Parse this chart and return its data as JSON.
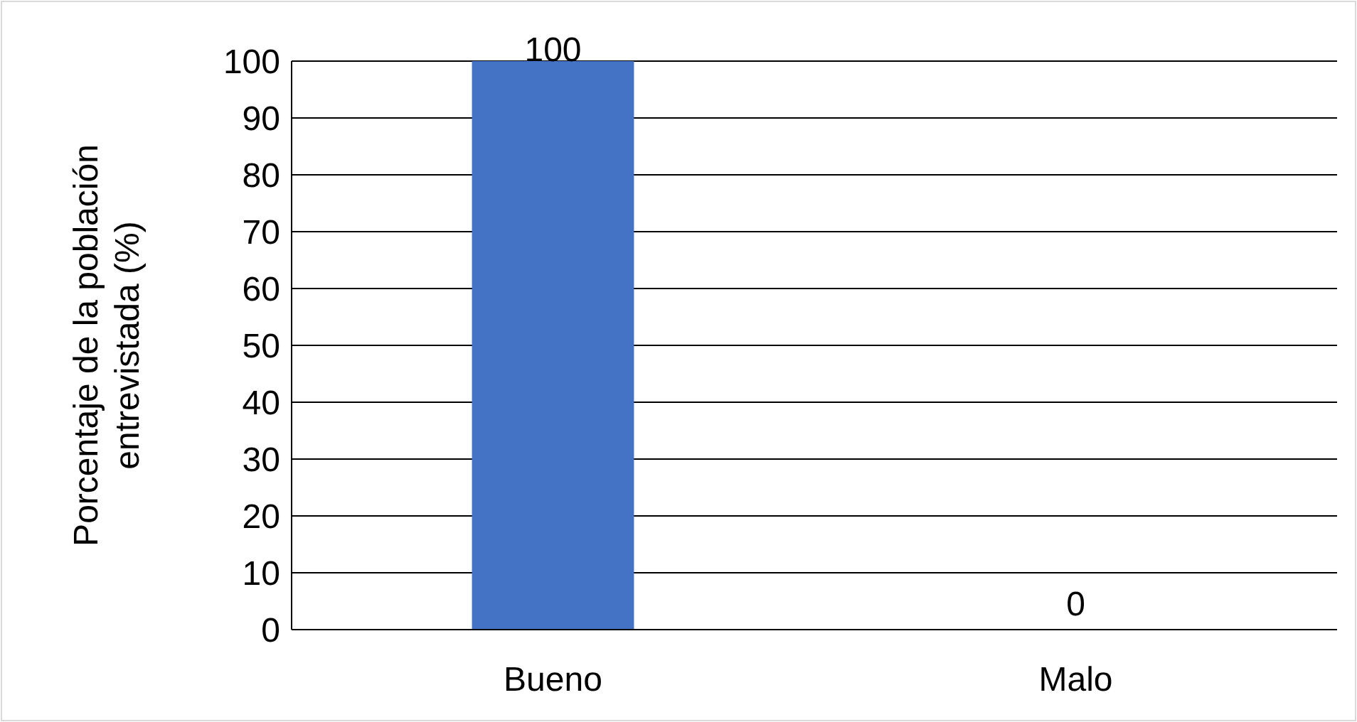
{
  "chart_data": {
    "type": "bar",
    "ylabel": "Porcentaje de la población entrevistada (%)",
    "categories": [
      "Bueno",
      "Malo"
    ],
    "values": [
      100,
      0
    ],
    "color": "#4472c4",
    "ylim": [
      0,
      100
    ],
    "yticks": [
      0,
      10,
      20,
      30,
      40,
      50,
      60,
      70,
      80,
      90,
      100
    ],
    "grid": "y",
    "data_labels": true
  }
}
